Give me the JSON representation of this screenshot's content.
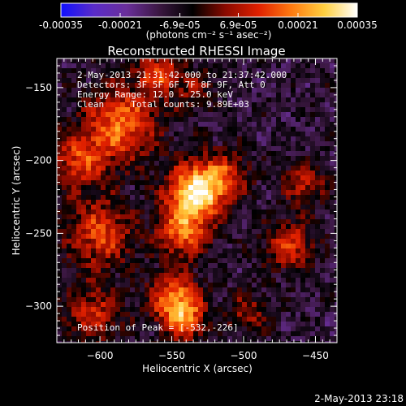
{
  "chart_data": {
    "type": "heatmap",
    "title": "Reconstructed RHESSI Image",
    "xlabel": "Heliocentric X (arcsec)",
    "ylabel": "Heliocentric Y (arcsec)",
    "xlim": [
      -630,
      -435
    ],
    "ylim": [
      -325,
      -130
    ],
    "xticks": [
      -600,
      -550,
      -500,
      -450
    ],
    "yticks": [
      -150,
      -200,
      -250,
      -300
    ],
    "colorbar": {
      "label": "(photons cm⁻² s⁻¹ asec⁻²)",
      "range": [
        -0.00035,
        0.00035
      ],
      "tick_values": [
        -0.00035,
        -0.00021,
        -6.9e-05,
        6.9e-05,
        0.00021,
        0.00035
      ],
      "tick_labels": [
        "-0.00035",
        "-0.00021",
        "-6.9e-05",
        "6.9e-05",
        "0.00021",
        "0.00035"
      ]
    },
    "annotations": [
      "2-May-2013 21:31:42.000 to 21:37:42.000",
      "Detectors: 3F 5F 6F 7F 8F 9F, Att 0",
      "Energy Range: 12.0 - 25.0 keV",
      "Clean     Total counts: 9.89E+03"
    ],
    "peak_label": "Position of Peak = [-532,-226]",
    "peak": [
      -532,
      -226
    ],
    "grid": false,
    "colormap": [
      "#1010ff",
      "#5a2cc9",
      "#6a2f9a",
      "#3a1740",
      "#000000",
      "#8a0a00",
      "#e02000",
      "#ff7a10",
      "#ffd040",
      "#ffffff"
    ],
    "sources": [
      {
        "x": -533,
        "y": -222,
        "amp": 1.0,
        "sigma": 14
      },
      {
        "x": -543,
        "y": -250,
        "amp": 0.6,
        "sigma": 12
      },
      {
        "x": -548,
        "y": -295,
        "amp": 0.7,
        "sigma": 12
      },
      {
        "x": -540,
        "y": -310,
        "amp": 0.5,
        "sigma": 10
      },
      {
        "x": -585,
        "y": -175,
        "amp": 0.65,
        "sigma": 18
      },
      {
        "x": -615,
        "y": -200,
        "amp": 0.5,
        "sigma": 14
      },
      {
        "x": -600,
        "y": -250,
        "amp": 0.55,
        "sigma": 16
      },
      {
        "x": -605,
        "y": -305,
        "amp": 0.45,
        "sigma": 14
      },
      {
        "x": -560,
        "y": -140,
        "amp": 0.55,
        "sigma": 10
      },
      {
        "x": -468,
        "y": -258,
        "amp": 0.5,
        "sigma": 12
      },
      {
        "x": -458,
        "y": -215,
        "amp": 0.45,
        "sigma": 10
      },
      {
        "x": -512,
        "y": -210,
        "amp": 0.4,
        "sigma": 12
      },
      {
        "x": -497,
        "y": -305,
        "amp": 0.35,
        "sigma": 10
      },
      {
        "x": -535,
        "y": -150,
        "amp": 0.3,
        "sigma": 10
      }
    ]
  },
  "footer": {
    "timestamp": "2-May-2013 23:18"
  }
}
